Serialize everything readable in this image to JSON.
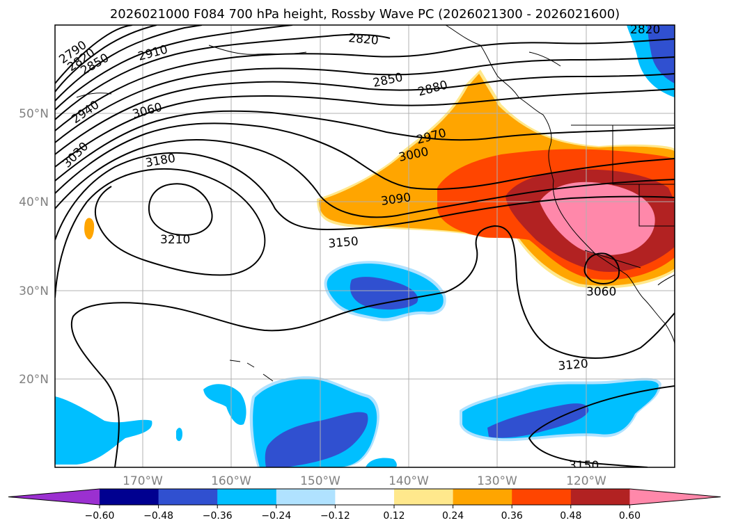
{
  "title": "2026021000 F084 700 hPa height, Rossby Wave PC (2026021300 - 2026021600)",
  "map": {
    "lat_labels": [
      "50°N",
      "40°N",
      "30°N",
      "20°N"
    ],
    "lon_labels": [
      "170°W",
      "160°W",
      "150°W",
      "140°W",
      "130°W",
      "120°W"
    ],
    "contour_labels": [
      "2790",
      "2820",
      "2850",
      "2820",
      "2910",
      "2820",
      "2850",
      "2880",
      "2940",
      "3060",
      "2970",
      "3000",
      "3030",
      "3180",
      "3090",
      "3210",
      "3150",
      "3060",
      "3120",
      "3150"
    ]
  },
  "colorbar": {
    "ticks": [
      "−0.60",
      "−0.48",
      "−0.36",
      "−0.24",
      "−0.12",
      "0.12",
      "0.24",
      "0.36",
      "0.48",
      "0.60"
    ],
    "colors": [
      "#9b30d0",
      "#000090",
      "#3050d0",
      "#00bfff",
      "#b0e2ff",
      "#ffffff",
      "#ffe88c",
      "#ffa500",
      "#ff4500",
      "#b22222",
      "#ff88aa"
    ]
  }
}
